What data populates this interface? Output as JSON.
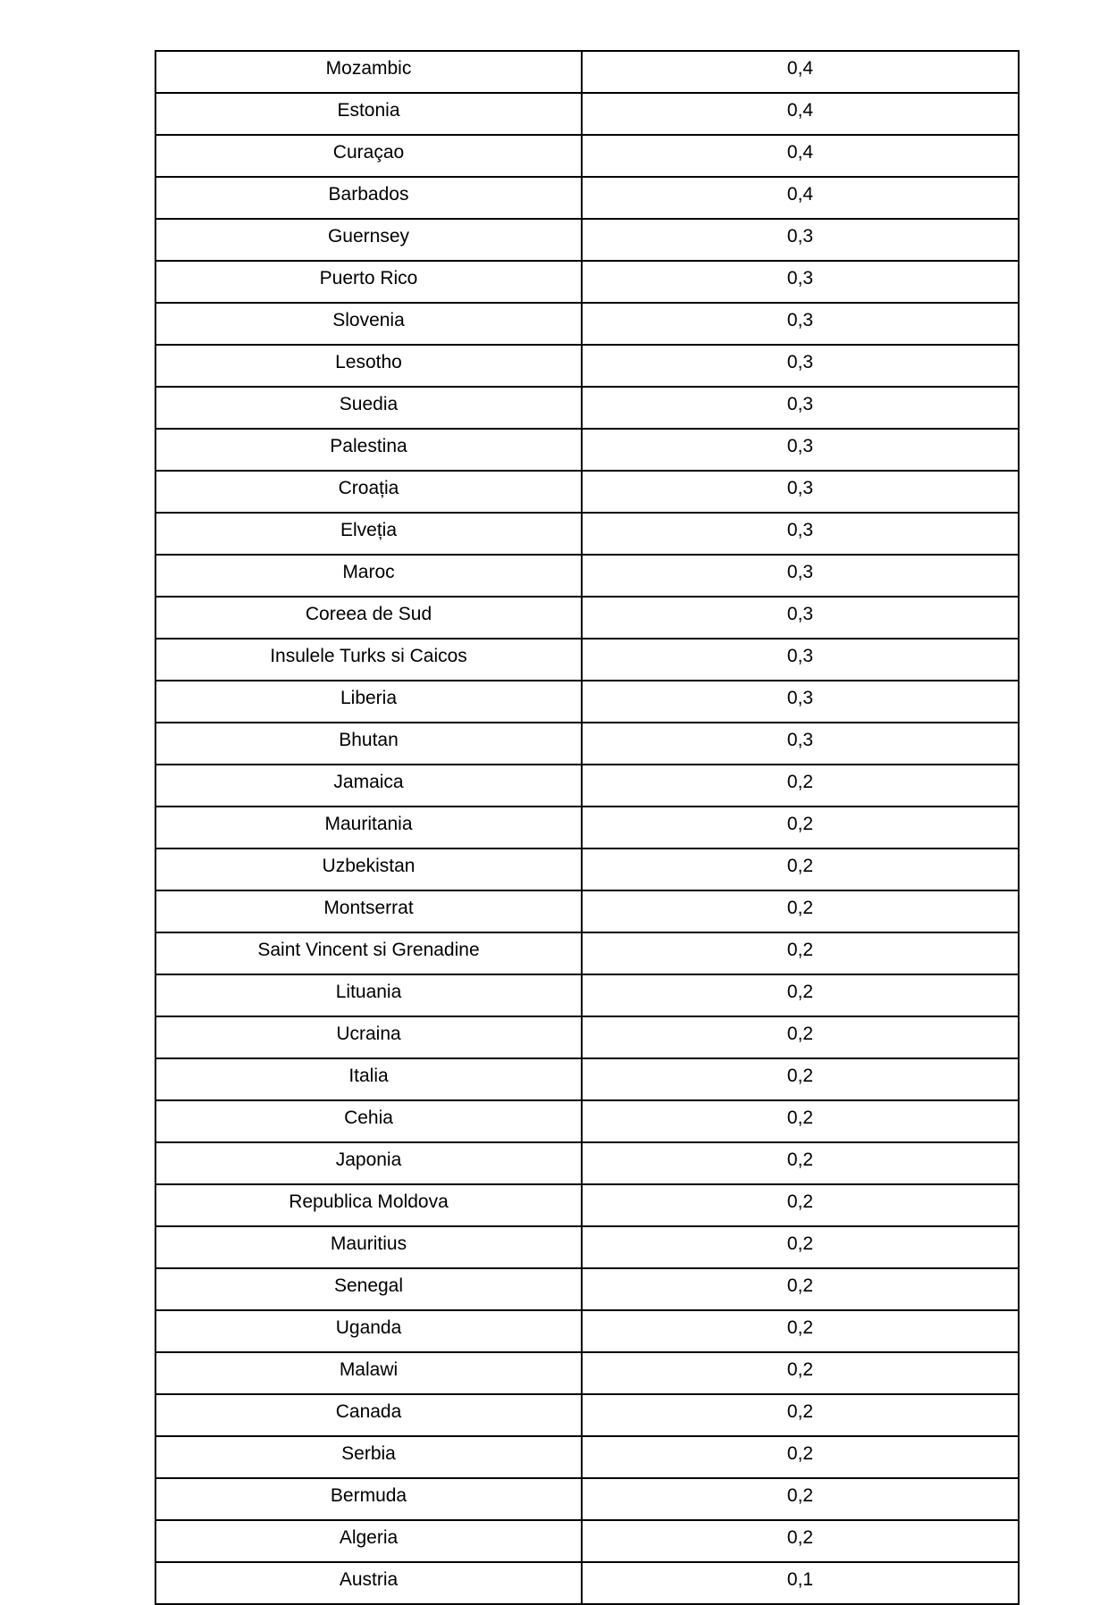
{
  "page": {
    "background_color": "#ffffff",
    "text_color": "#000000",
    "border_color": "#000000"
  },
  "table": {
    "columns": [
      "country",
      "value"
    ],
    "decimal_separator": ",",
    "rows": [
      {
        "country": "Mozambic",
        "value": "0,4"
      },
      {
        "country": "Estonia",
        "value": "0,4"
      },
      {
        "country": "Curaçao",
        "value": "0,4"
      },
      {
        "country": "Barbados",
        "value": "0,4"
      },
      {
        "country": "Guernsey",
        "value": "0,3"
      },
      {
        "country": "Puerto Rico",
        "value": "0,3"
      },
      {
        "country": "Slovenia",
        "value": "0,3"
      },
      {
        "country": "Lesotho",
        "value": "0,3"
      },
      {
        "country": "Suedia",
        "value": "0,3"
      },
      {
        "country": "Palestina",
        "value": "0,3"
      },
      {
        "country": "Croația",
        "value": "0,3"
      },
      {
        "country": "Elveția",
        "value": "0,3"
      },
      {
        "country": "Maroc",
        "value": "0,3"
      },
      {
        "country": "Coreea de Sud",
        "value": "0,3"
      },
      {
        "country": "Insulele Turks si Caicos",
        "value": "0,3"
      },
      {
        "country": "Liberia",
        "value": "0,3"
      },
      {
        "country": "Bhutan",
        "value": "0,3"
      },
      {
        "country": "Jamaica",
        "value": "0,2"
      },
      {
        "country": "Mauritania",
        "value": "0,2"
      },
      {
        "country": "Uzbekistan",
        "value": "0,2"
      },
      {
        "country": "Montserrat",
        "value": "0,2"
      },
      {
        "country": "Saint Vincent si Grenadine",
        "value": "0,2"
      },
      {
        "country": "Lituania",
        "value": "0,2"
      },
      {
        "country": "Ucraina",
        "value": "0,2"
      },
      {
        "country": "Italia",
        "value": "0,2"
      },
      {
        "country": "Cehia",
        "value": "0,2"
      },
      {
        "country": "Japonia",
        "value": "0,2"
      },
      {
        "country": "Republica Moldova",
        "value": "0,2"
      },
      {
        "country": "Mauritius",
        "value": "0,2"
      },
      {
        "country": "Senegal",
        "value": "0,2"
      },
      {
        "country": "Uganda",
        "value": "0,2"
      },
      {
        "country": "Malawi",
        "value": "0,2"
      },
      {
        "country": "Canada",
        "value": "0,2"
      },
      {
        "country": "Serbia",
        "value": "0,2"
      },
      {
        "country": "Bermuda",
        "value": "0,2"
      },
      {
        "country": "Algeria",
        "value": "0,2"
      },
      {
        "country": "Austria",
        "value": "0,1"
      }
    ]
  }
}
